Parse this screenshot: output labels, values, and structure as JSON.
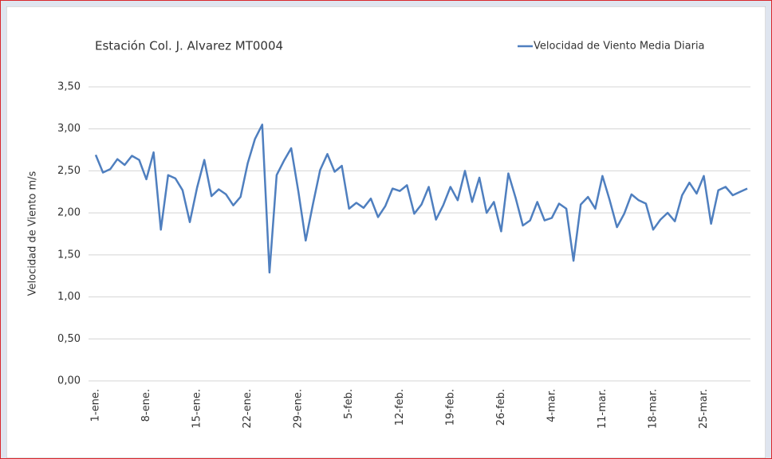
{
  "chart_data": {
    "type": "line",
    "title": "Estación Col. J. Alvarez MT0004",
    "ylabel": "Velocidad de Viento m/s",
    "categories": [
      "1-ene.",
      null,
      null,
      null,
      null,
      null,
      null,
      "8-ene.",
      null,
      null,
      null,
      null,
      null,
      null,
      "15-ene.",
      null,
      null,
      null,
      null,
      null,
      null,
      "22-ene.",
      null,
      null,
      null,
      null,
      null,
      null,
      "29-ene.",
      null,
      null,
      null,
      null,
      null,
      null,
      "5-feb.",
      null,
      null,
      null,
      null,
      null,
      null,
      "12-feb.",
      null,
      null,
      null,
      null,
      null,
      null,
      "19-feb.",
      null,
      null,
      null,
      null,
      null,
      null,
      "26-feb.",
      null,
      null,
      null,
      null,
      null,
      null,
      "4-mar.",
      null,
      null,
      null,
      null,
      null,
      null,
      "11-mar.",
      null,
      null,
      null,
      null,
      null,
      null,
      "18-mar.",
      null,
      null,
      null,
      null,
      null,
      null,
      "25-mar.",
      null,
      null,
      null,
      null,
      null,
      null
    ],
    "series": [
      {
        "name": "Velocidad de Viento Media Diaria",
        "color": "#4f7fbf",
        "values": [
          2.69,
          2.48,
          2.52,
          2.64,
          2.57,
          2.68,
          2.63,
          2.4,
          2.72,
          1.8,
          2.45,
          2.41,
          2.27,
          1.89,
          2.3,
          2.63,
          2.2,
          2.28,
          2.22,
          2.09,
          2.19,
          2.59,
          2.88,
          3.05,
          1.29,
          2.45,
          2.62,
          2.77,
          2.25,
          1.67,
          2.1,
          2.51,
          2.7,
          2.49,
          2.56,
          2.05,
          2.12,
          2.06,
          2.17,
          1.95,
          2.08,
          2.29,
          2.26,
          2.33,
          1.99,
          2.1,
          2.31,
          1.92,
          2.09,
          2.31,
          2.15,
          2.5,
          2.13,
          2.42,
          2.0,
          2.13,
          1.78,
          2.47,
          2.18,
          1.85,
          1.91,
          2.13,
          1.91,
          1.94,
          2.11,
          2.05,
          1.43,
          2.1,
          2.19,
          2.05,
          2.44,
          2.15,
          1.83,
          1.99,
          2.22,
          2.15,
          2.11,
          1.8,
          1.92,
          2.0,
          1.9,
          2.21,
          2.36,
          2.23,
          2.44,
          1.87,
          2.27,
          2.31,
          2.21,
          2.25,
          2.29
        ]
      }
    ],
    "ylim": [
      0,
      3.5
    ],
    "yticks": [
      {
        "value": 0,
        "label": "0,00"
      },
      {
        "value": 0.5,
        "label": "0,50"
      },
      {
        "value": 1,
        "label": "1,00"
      },
      {
        "value": 1.5,
        "label": "1,50"
      },
      {
        "value": 2,
        "label": "2,00"
      },
      {
        "value": 2.5,
        "label": "2,50"
      },
      {
        "value": 3,
        "label": "3,00"
      },
      {
        "value": 3.5,
        "label": "3,50"
      }
    ],
    "grid": true,
    "legend": "top-right"
  }
}
